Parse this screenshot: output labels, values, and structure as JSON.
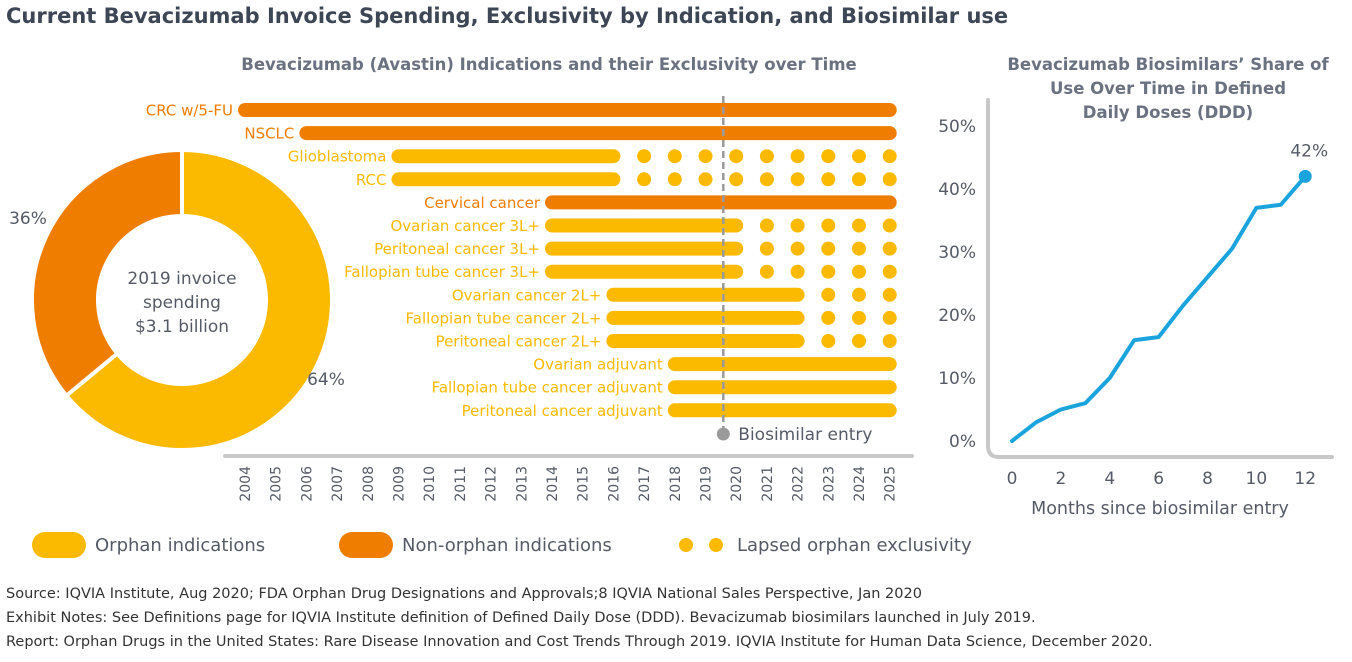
{
  "title": "Current Bevacizumab Invoice Spending, Exclusivity by Indication, and Biosimilar use",
  "colors": {
    "orphan": "#FBBA00",
    "non_orphan": "#EF7D00",
    "line": "#1BA3DD",
    "axis": "#C8C8C8",
    "marker": "#9A9A9A",
    "text": "#555B66"
  },
  "chart_data": [
    {
      "type": "pie",
      "variant": "donut",
      "center_label": [
        "2019 invoice",
        "spending",
        "$3.1 billion"
      ],
      "slices": [
        {
          "name": "Orphan indications",
          "value": 64,
          "label": "64%"
        },
        {
          "name": "Non-orphan indications",
          "value": 36,
          "label": "36%"
        }
      ]
    },
    {
      "type": "bar",
      "variant": "timeline",
      "title": "Bevacizumab (Avastin) Indications and their Exclusivity over Time",
      "years": [
        "2004",
        "2005",
        "2006",
        "2007",
        "2008",
        "2009",
        "2010",
        "2011",
        "2012",
        "2013",
        "2014",
        "2015",
        "2016",
        "2017",
        "2018",
        "2019",
        "2020",
        "2021",
        "2022",
        "2023",
        "2024",
        "2025"
      ],
      "biosimilar_entry": 2019.58,
      "biosimilar_label": "Biosimilar entry",
      "rows": [
        {
          "label": "CRC w/5-FU",
          "type": "non_orphan",
          "start": 2004,
          "end": 2025,
          "dots": []
        },
        {
          "label": "NSCLC",
          "type": "non_orphan",
          "start": 2006,
          "end": 2025,
          "dots": []
        },
        {
          "label": "Glioblastoma",
          "type": "orphan",
          "start": 2009,
          "end": 2016,
          "dots": [
            2017,
            2018,
            2019,
            2020,
            2021,
            2022,
            2023,
            2024,
            2025
          ]
        },
        {
          "label": "RCC",
          "type": "orphan",
          "start": 2009,
          "end": 2016,
          "dots": [
            2017,
            2018,
            2019,
            2020,
            2021,
            2022,
            2023,
            2024,
            2025
          ]
        },
        {
          "label": "Cervical cancer",
          "type": "non_orphan",
          "start": 2014,
          "end": 2025,
          "dots": []
        },
        {
          "label": "Ovarian cancer 3L+",
          "type": "orphan",
          "start": 2014,
          "end": 2020,
          "dots": [
            2021,
            2022,
            2023,
            2024,
            2025
          ]
        },
        {
          "label": "Peritoneal cancer 3L+",
          "type": "orphan",
          "start": 2014,
          "end": 2020,
          "dots": [
            2021,
            2022,
            2023,
            2024,
            2025
          ]
        },
        {
          "label": "Fallopian tube cancer 3L+",
          "type": "orphan",
          "start": 2014,
          "end": 2020,
          "dots": [
            2021,
            2022,
            2023,
            2024,
            2025
          ]
        },
        {
          "label": "Ovarian cancer 2L+",
          "type": "orphan",
          "start": 2016,
          "end": 2022,
          "dots": [
            2023,
            2024,
            2025
          ]
        },
        {
          "label": "Fallopian tube cancer 2L+",
          "type": "orphan",
          "start": 2016,
          "end": 2022,
          "dots": [
            2023,
            2024,
            2025
          ]
        },
        {
          "label": "Peritoneal cancer 2L+",
          "type": "orphan",
          "start": 2016,
          "end": 2022,
          "dots": [
            2023,
            2024,
            2025
          ]
        },
        {
          "label": "Ovarian adjuvant",
          "type": "orphan",
          "start": 2018,
          "end": 2025,
          "dots": []
        },
        {
          "label": "Fallopian tube cancer adjuvant",
          "type": "orphan",
          "start": 2018,
          "end": 2025,
          "dots": []
        },
        {
          "label": "Peritoneal cancer adjuvant",
          "type": "orphan",
          "start": 2018,
          "end": 2025,
          "dots": []
        }
      ],
      "legend": [
        {
          "name": "Orphan indications",
          "kind": "orphan"
        },
        {
          "name": "Non-orphan indications",
          "kind": "non_orphan"
        },
        {
          "name": "Lapsed orphan exclusivity",
          "kind": "dots"
        }
      ]
    },
    {
      "type": "line",
      "title": [
        "Bevacizumab Biosimilars’ Share of",
        "Use Over Time in Defined",
        "Daily Doses (DDD)"
      ],
      "xlabel": "Months since biosimilar entry",
      "ylabel": "",
      "xticks": [
        "0",
        "2",
        "4",
        "6",
        "8",
        "10",
        "12"
      ],
      "yticks": [
        "0%",
        "10%",
        "20%",
        "30%",
        "40%",
        "50%"
      ],
      "xlim": [
        0,
        12.4
      ],
      "ylim": [
        0,
        50
      ],
      "x": [
        0,
        1,
        2,
        3,
        4,
        5,
        6,
        7,
        8,
        9,
        10,
        11,
        12
      ],
      "y": [
        0,
        3,
        5,
        6,
        10,
        16,
        16.5,
        21.5,
        26,
        30.5,
        37,
        37.5,
        42
      ],
      "end_label": "42%"
    }
  ],
  "footnotes": [
    "Source: IQVIA Institute, Aug 2020; FDA Orphan Drug Designations and Approvals;8 IQVIA National Sales Perspective, Jan 2020",
    "Exhibit Notes: See Definitions page for IQVIA Institute definition of Defined Daily Dose (DDD). Bevacizumab biosimilars launched in July 2019.",
    "Report: Orphan Drugs in the United States: Rare Disease Innovation and Cost Trends Through 2019. IQVIA Institute for Human Data Science, December 2020."
  ]
}
